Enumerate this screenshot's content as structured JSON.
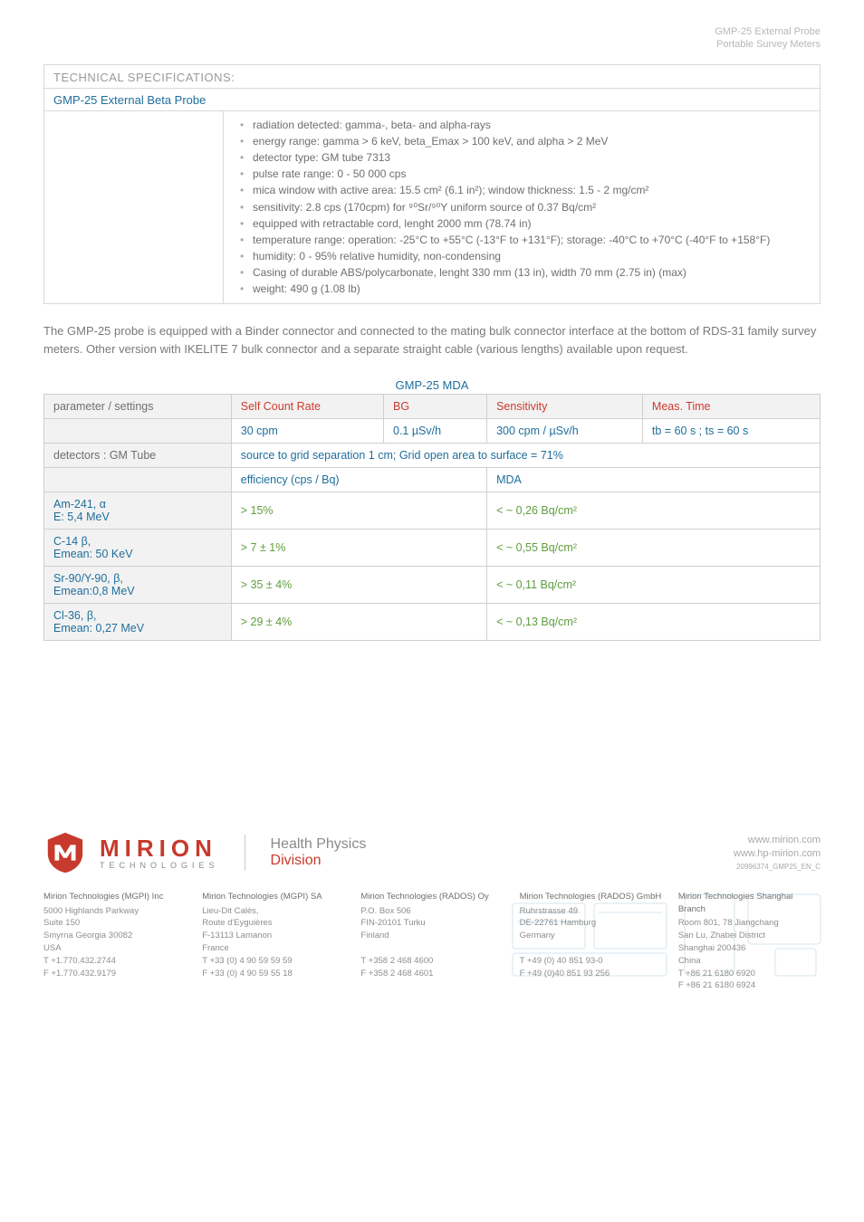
{
  "header": {
    "line1": "GMP-25 External Probe",
    "line2": "Portable Survey Meters"
  },
  "techspec": {
    "section_title": "TECHNICAL SPECIFICATIONS:",
    "probe_title": "GMP-25 External Beta Probe",
    "bullets": [
      "radiation detected: gamma-, beta- and alpha-rays",
      "energy range: gamma > 6 keV, beta_Emax > 100 keV, and alpha > 2 MeV",
      "detector type: GM tube 7313",
      "pulse rate range: 0 - 50 000 cps",
      "mica window with active area: 15.5 cm² (6.1 in²); window thickness: 1.5 - 2 mg/cm²",
      "sensitivity: 2.8 cps (170cpm) for ⁹⁰Sr/⁹⁰Y uniform source of 0.37 Bq/cm²",
      "equipped with retractable cord, lenght 2000 mm (78.74 in)",
      "temperature range: operation: -25°C to +55°C (-13°F to +131°F); storage: -40°C to +70°C (-40°F to +158°F)",
      "humidity: 0 - 95% relative humidity, non-condensing",
      "Casing of durable ABS/polycarbonate, lenght 330 mm (13 in), width 70 mm (2.75 in) (max)",
      "weight: 490 g (1.08 lb)"
    ]
  },
  "paragraph": "The GMP-25 probe is equipped with a Binder connector and connected to the mating bulk connector interface at the bottom of RDS-31 family survey meters.  Other version with IKELITE 7 bulk connector and a separate straight cable (various lengths) available upon request.",
  "mda": {
    "title": "GMP-25 MDA",
    "colors": {
      "header_bg": "#f2f2f2",
      "border": "#cfcfcf",
      "red": "#cc3b2e",
      "blue": "#1f6e9c",
      "gray": "#6f6f6f",
      "green": "#5f9e3f"
    },
    "r1": {
      "c1": "parameter / settings",
      "c2": "Self Count Rate",
      "c3": "BG",
      "c4": "Sensitivity",
      "c5": "Meas. Time"
    },
    "r2": {
      "c2": "30 cpm",
      "c3": "0.1 µSv/h",
      "c4": "300 cpm / µSv/h",
      "c5": "tb = 60 s ; ts = 60 s"
    },
    "r3": {
      "c1": "detectors : GM Tube",
      "c2": "source to grid separation 1 cm; Grid open area to surface = 71%"
    },
    "r4": {
      "c1": "efficiency  (cps / Bq)",
      "c2": "MDA"
    },
    "r5": {
      "c1a": "Am-241, α",
      "c1b": "E: 5,4 MeV",
      "c2": "> 15%",
      "c3": "< ~ 0,26 Bq/cm²"
    },
    "r6": {
      "c1a": "C-14 β,",
      "c1b": "Emean: 50 KeV",
      "c2": "> 7 ± 1%",
      "c3": "< ~ 0,55 Bq/cm²"
    },
    "r7": {
      "c1a": "Sr-90/Y-90, β,",
      "c1b": "Emean:0,8 MeV",
      "c2": ">  35 ± 4%",
      "c3": "< ~ 0,11  Bq/cm²"
    },
    "r8": {
      "c1a": "Cl-36, β,",
      "c1b": "Emean: 0,27 MeV",
      "c2": "> 29 ± 4%",
      "c3": "< ~ 0,13 Bq/cm²"
    }
  },
  "logo": {
    "mirion": "MIRION",
    "tech": "TECHNOLOGIES",
    "hp": "Health Physics",
    "div": "Division",
    "shield_color": "#c73a2d"
  },
  "weblinks": {
    "l1": "www.mirion.com",
    "l2": "www.hp-mirion.com",
    "docid": "20996374_GMP25_EN_C"
  },
  "offices": [
    {
      "name": "Mirion Technologies (MGPI) Inc",
      "lines": [
        "5000 Highlands Parkway",
        "Suite 150",
        "Smyrna Georgia 30082",
        "USA",
        "T   +1.770.432.2744",
        "F   +1.770.432.9179"
      ]
    },
    {
      "name": "Mirion Technologies (MGPI) SA",
      "lines": [
        "Lieu-Dit Calès,",
        "Route d'Eyguières",
        "F-13113 Lamanon",
        "France",
        "T    +33 (0) 4 90 59 59 59",
        "F    +33 (0) 4 90 59 55 18"
      ]
    },
    {
      "name": "Mirion Technologies (RADOS) Oy",
      "lines": [
        "P.O. Box 506",
        "FIN-20101 Turku",
        "Finland",
        "",
        "T    +358 2 468 4600",
        "F    +358 2 468 4601"
      ]
    },
    {
      "name": "Mirion Technologies (RADOS) GmbH",
      "lines": [
        "Ruhrstrasse 49",
        "DE-22761 Hamburg",
        "Germany",
        "",
        "T    +49 (0) 40 851 93-0",
        "F    +49 (0)40 851 93 256"
      ]
    },
    {
      "name": "Mirion Technologies Shanghai Branch",
      "lines": [
        "Room 801, 78 Jiangchang",
        "San Lu, Zhabei District",
        "Shanghai 200436",
        "China",
        "T +86 21 6180 6920",
        "F +86 21 6180 6924"
      ]
    }
  ]
}
